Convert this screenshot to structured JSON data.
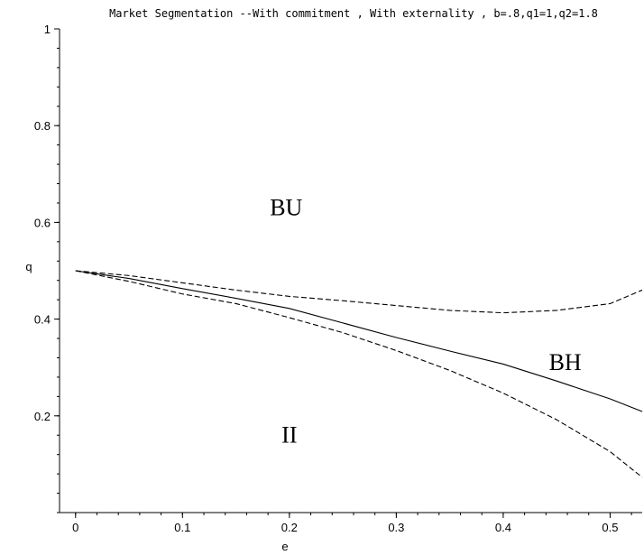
{
  "chart_data": {
    "type": "line",
    "title": "Market Segmentation --With commitment , With externality , b=.8,q1=1,q2=1.8",
    "xlabel": "e",
    "ylabel": "q",
    "xlim": [
      -0.015,
      0.53
    ],
    "ylim": [
      0.0,
      1.0
    ],
    "x_ticks": [
      0,
      0.1,
      0.2,
      0.3,
      0.4,
      0.5
    ],
    "y_ticks": [
      0.2,
      0.4,
      0.6,
      0.8,
      1
    ],
    "x_tick_labels": [
      "0",
      "0.1",
      "0.2",
      "0.3",
      "0.4",
      "0.5"
    ],
    "y_tick_labels": [
      "0.2",
      "0.4",
      "0.6",
      "0.8",
      "1"
    ],
    "x_minor_step": 0.02,
    "y_minor_step": 0.04,
    "grid": false,
    "series": [
      {
        "style": "solid",
        "points": [
          [
            0,
            0.5
          ],
          [
            0.05,
            0.484
          ],
          [
            0.1,
            0.463
          ],
          [
            0.15,
            0.443
          ],
          [
            0.2,
            0.422
          ],
          [
            0.25,
            0.392
          ],
          [
            0.3,
            0.362
          ],
          [
            0.35,
            0.334
          ],
          [
            0.4,
            0.307
          ],
          [
            0.45,
            0.272
          ],
          [
            0.5,
            0.235
          ],
          [
            0.53,
            0.209
          ]
        ]
      },
      {
        "style": "dashed",
        "points": [
          [
            0,
            0.5
          ],
          [
            0.05,
            0.49
          ],
          [
            0.1,
            0.475
          ],
          [
            0.15,
            0.46
          ],
          [
            0.2,
            0.447
          ],
          [
            0.25,
            0.438
          ],
          [
            0.3,
            0.428
          ],
          [
            0.35,
            0.418
          ],
          [
            0.4,
            0.413
          ],
          [
            0.45,
            0.418
          ],
          [
            0.5,
            0.432
          ],
          [
            0.53,
            0.46
          ]
        ]
      },
      {
        "style": "dashed",
        "points": [
          [
            0,
            0.5
          ],
          [
            0.05,
            0.478
          ],
          [
            0.1,
            0.452
          ],
          [
            0.15,
            0.432
          ],
          [
            0.2,
            0.403
          ],
          [
            0.25,
            0.372
          ],
          [
            0.3,
            0.335
          ],
          [
            0.35,
            0.294
          ],
          [
            0.4,
            0.247
          ],
          [
            0.45,
            0.192
          ],
          [
            0.5,
            0.126
          ],
          [
            0.53,
            0.073
          ]
        ]
      }
    ],
    "annotations": [
      {
        "text": "BU",
        "x": 0.197,
        "y": 0.615
      },
      {
        "text": "BH",
        "x": 0.458,
        "y": 0.295
      },
      {
        "text": "II",
        "x": 0.2,
        "y": 0.145
      }
    ]
  }
}
